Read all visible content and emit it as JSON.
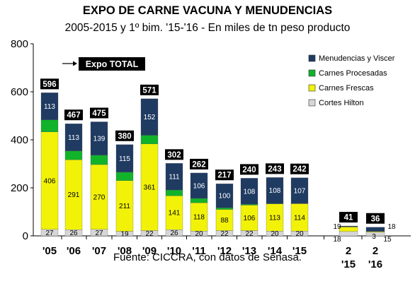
{
  "title": "EXPO DE CARNE VACUNA Y MENUDENCIAS",
  "subtitle": "2005-2015 y 1º bim. '15-'16 - En miles de tn peso producto",
  "source": "Fuente: CICCRA, con datos de Senasa.",
  "annotation": "Expo TOTAL",
  "colors": {
    "Menudencias y Viscer": "#1f3b62",
    "Carnes Procesadas": "#11b32a",
    "Carnes Frescas": "#f2f208",
    "Cortes Hilton": "#d6d6d6"
  },
  "chart_data": {
    "type": "bar",
    "stacked": true,
    "categories": [
      "'05",
      "'06",
      "'07",
      "'08",
      "'09",
      "'10",
      "'11",
      "'12",
      "'13",
      "'14",
      "'15",
      "2\n'15",
      "2\n'16"
    ],
    "series": [
      {
        "name": "Cortes Hilton",
        "values": [
          27,
          26,
          27,
          19,
          22,
          26,
          20,
          22,
          22,
          20,
          20,
          18,
          15
        ]
      },
      {
        "name": "Carnes Frescas",
        "values": [
          406,
          291,
          270,
          211,
          361,
          141,
          118,
          88,
          106,
          113,
          114,
          19,
          3
        ]
      },
      {
        "name": "Carnes Procesadas",
        "values": [
          50,
          37,
          39,
          35,
          36,
          24,
          18,
          7,
          4,
          2,
          1,
          1,
          0
        ]
      },
      {
        "name": "Menudencias y Viscer",
        "values": [
          113,
          113,
          139,
          115,
          152,
          111,
          106,
          100,
          108,
          108,
          107,
          3,
          18
        ]
      }
    ],
    "labels": {
      "Cortes Hilton": [
        "27",
        "26",
        "27",
        "19",
        "22",
        "26",
        "20",
        "22",
        "22",
        "20",
        "20",
        "18",
        "15"
      ],
      "Carnes Frescas": [
        "406",
        "291",
        "270",
        "211",
        "361",
        "141",
        "118",
        "88",
        "106",
        "113",
        "114",
        "19",
        "3"
      ],
      "Menudencias y Viscer": [
        "113",
        "113",
        "139",
        "115",
        "152",
        "111",
        "106",
        "100",
        "108",
        "108",
        "107",
        "",
        "18"
      ]
    },
    "totals": [
      596,
      467,
      475,
      380,
      571,
      302,
      262,
      217,
      240,
      243,
      242,
      41,
      36
    ],
    "legend": [
      "Menudencias y Viscer",
      "Carnes Procesadas",
      "Carnes Frescas",
      "Cortes Hilton"
    ],
    "yticks": [
      0,
      200,
      400,
      600,
      800
    ],
    "ylim": [
      0,
      800
    ],
    "grid": false,
    "legend_position": "top-right"
  }
}
